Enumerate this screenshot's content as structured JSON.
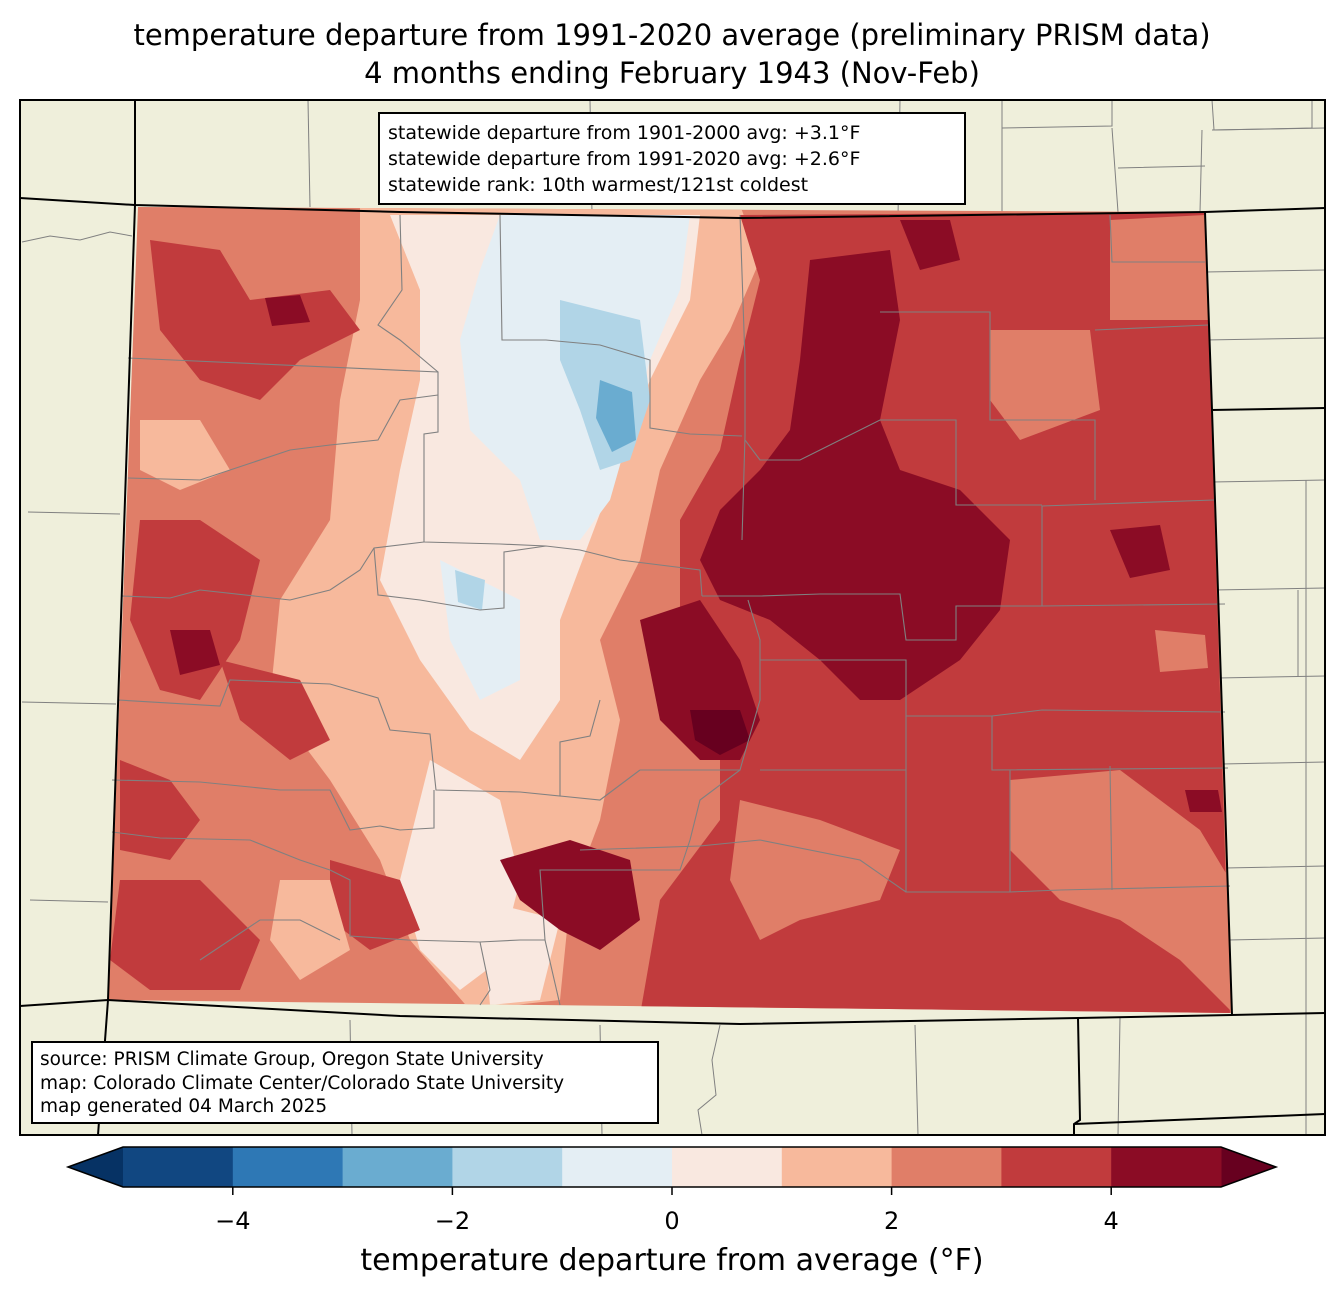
{
  "title": {
    "line1": "temperature departure from 1991-2020 average (preliminary PRISM data)",
    "line2": "4 months ending February 1943 (Nov-Feb)"
  },
  "stats": {
    "line1": "statewide departure from 1901-2000 avg: +3.1°F",
    "line2": "statewide departure from 1991-2020 avg: +2.6°F",
    "line3": "statewide rank: 10th warmest/121st coldest"
  },
  "source": {
    "line1": "source: PRISM Climate Group, Oregon State University",
    "line2": "map: Colorado Climate Center/Colorado State University",
    "line3": "map generated 04 March 2025"
  },
  "colorbar": {
    "label": "temperature departure from average (°F)",
    "range": [
      -5,
      5
    ],
    "bins": [
      {
        "from": -5,
        "to": -4,
        "color": "#114781"
      },
      {
        "from": -4,
        "to": -3,
        "color": "#2e78b5"
      },
      {
        "from": -3,
        "to": -2,
        "color": "#6aacd0"
      },
      {
        "from": -2,
        "to": -1,
        "color": "#b1d5e7"
      },
      {
        "from": -1,
        "to": 0,
        "color": "#e4eef4"
      },
      {
        "from": 0,
        "to": 1,
        "color": "#f9e8e0"
      },
      {
        "from": 1,
        "to": 2,
        "color": "#f7b99c"
      },
      {
        "from": 2,
        "to": 3,
        "color": "#e07e68"
      },
      {
        "from": 3,
        "to": 4,
        "color": "#c13b3d"
      },
      {
        "from": 4,
        "to": 5,
        "color": "#8b0c25"
      }
    ],
    "under_color": "#063264",
    "over_color": "#67001f",
    "ticks": [
      {
        "value": -4,
        "label": "−4"
      },
      {
        "value": -2,
        "label": "−2"
      },
      {
        "value": 0,
        "label": "0"
      },
      {
        "value": 2,
        "label": "2"
      },
      {
        "value": 4,
        "label": "4"
      }
    ]
  },
  "colors": {
    "land": "#efefdb",
    "county_lines": "#808080",
    "state_lines": "#000000"
  }
}
